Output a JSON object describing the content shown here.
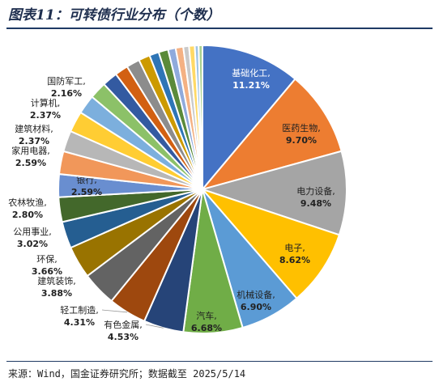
{
  "title": "图表11：可转债行业分布（个数）",
  "source": "来源：Wind，国金证券研究所；数据截至 2025/5/14",
  "chart_data": {
    "type": "pie",
    "title": "图表11：可转债行业分布（个数）",
    "slices": [
      {
        "name": "基础化工",
        "value": 11.21,
        "label": "11.21%",
        "color": "#4472c4"
      },
      {
        "name": "医药生物",
        "value": 9.7,
        "label": "9.70%",
        "color": "#ed7d31"
      },
      {
        "name": "电力设备",
        "value": 9.48,
        "label": "9.48%",
        "color": "#a5a5a5"
      },
      {
        "name": "电子",
        "value": 8.62,
        "label": "8.62%",
        "color": "#ffc000"
      },
      {
        "name": "机械设备",
        "value": 6.9,
        "label": "6.90%",
        "color": "#5b9bd5"
      },
      {
        "name": "汽车",
        "value": 6.68,
        "label": "6.68%",
        "color": "#70ad47"
      },
      {
        "name": "有色金属",
        "value": 4.53,
        "label": "4.53%",
        "color": "#264478"
      },
      {
        "name": "轻工制造",
        "value": 4.31,
        "label": "4.31%",
        "color": "#9e480e"
      },
      {
        "name": "建筑装饰",
        "value": 3.88,
        "label": "3.88%",
        "color": "#636363"
      },
      {
        "name": "环保",
        "value": 3.66,
        "label": "3.66%",
        "color": "#997300"
      },
      {
        "name": "公用事业",
        "value": 3.02,
        "label": "3.02%",
        "color": "#255e91"
      },
      {
        "name": "农林牧渔",
        "value": 2.8,
        "label": "2.80%",
        "color": "#43682b"
      },
      {
        "name": "银行",
        "value": 2.59,
        "label": "2.59%",
        "color": "#698ed0"
      },
      {
        "name": "家用电器",
        "value": 2.59,
        "label": "2.59%",
        "color": "#f1975a"
      },
      {
        "name": "建筑材料",
        "value": 2.37,
        "label": "2.37%",
        "color": "#b7b7b7"
      },
      {
        "name": "计算机",
        "value": 2.37,
        "label": "2.37%",
        "color": "#ffcd33"
      },
      {
        "name": "国防军工",
        "value": 2.16,
        "label": "2.16%",
        "color": "#7cafdd"
      },
      {
        "name": "",
        "value": 1.94,
        "label": "",
        "color": "#8cc168"
      },
      {
        "name": "",
        "value": 1.73,
        "label": "",
        "color": "#335aa1"
      },
      {
        "name": "",
        "value": 1.51,
        "label": "",
        "color": "#d26012"
      },
      {
        "name": "",
        "value": 1.51,
        "label": "",
        "color": "#8c8c8c"
      },
      {
        "name": "",
        "value": 1.29,
        "label": "",
        "color": "#cc9a00"
      },
      {
        "name": "",
        "value": 1.08,
        "label": "",
        "color": "#2e75b6"
      },
      {
        "name": "",
        "value": 1.08,
        "label": "",
        "color": "#5a8a3a"
      },
      {
        "name": "",
        "value": 0.86,
        "label": "",
        "color": "#8faadc"
      },
      {
        "name": "",
        "value": 0.86,
        "label": "",
        "color": "#f4b183"
      },
      {
        "name": "",
        "value": 0.65,
        "label": "",
        "color": "#c9c9c9"
      },
      {
        "name": "",
        "value": 0.65,
        "label": "",
        "color": "#ffd966"
      },
      {
        "name": "",
        "value": 0.43,
        "label": "",
        "color": "#9dc3e6"
      },
      {
        "name": "",
        "value": 0.43,
        "label": "",
        "color": "#a9d18e"
      }
    ],
    "legend": "none"
  }
}
